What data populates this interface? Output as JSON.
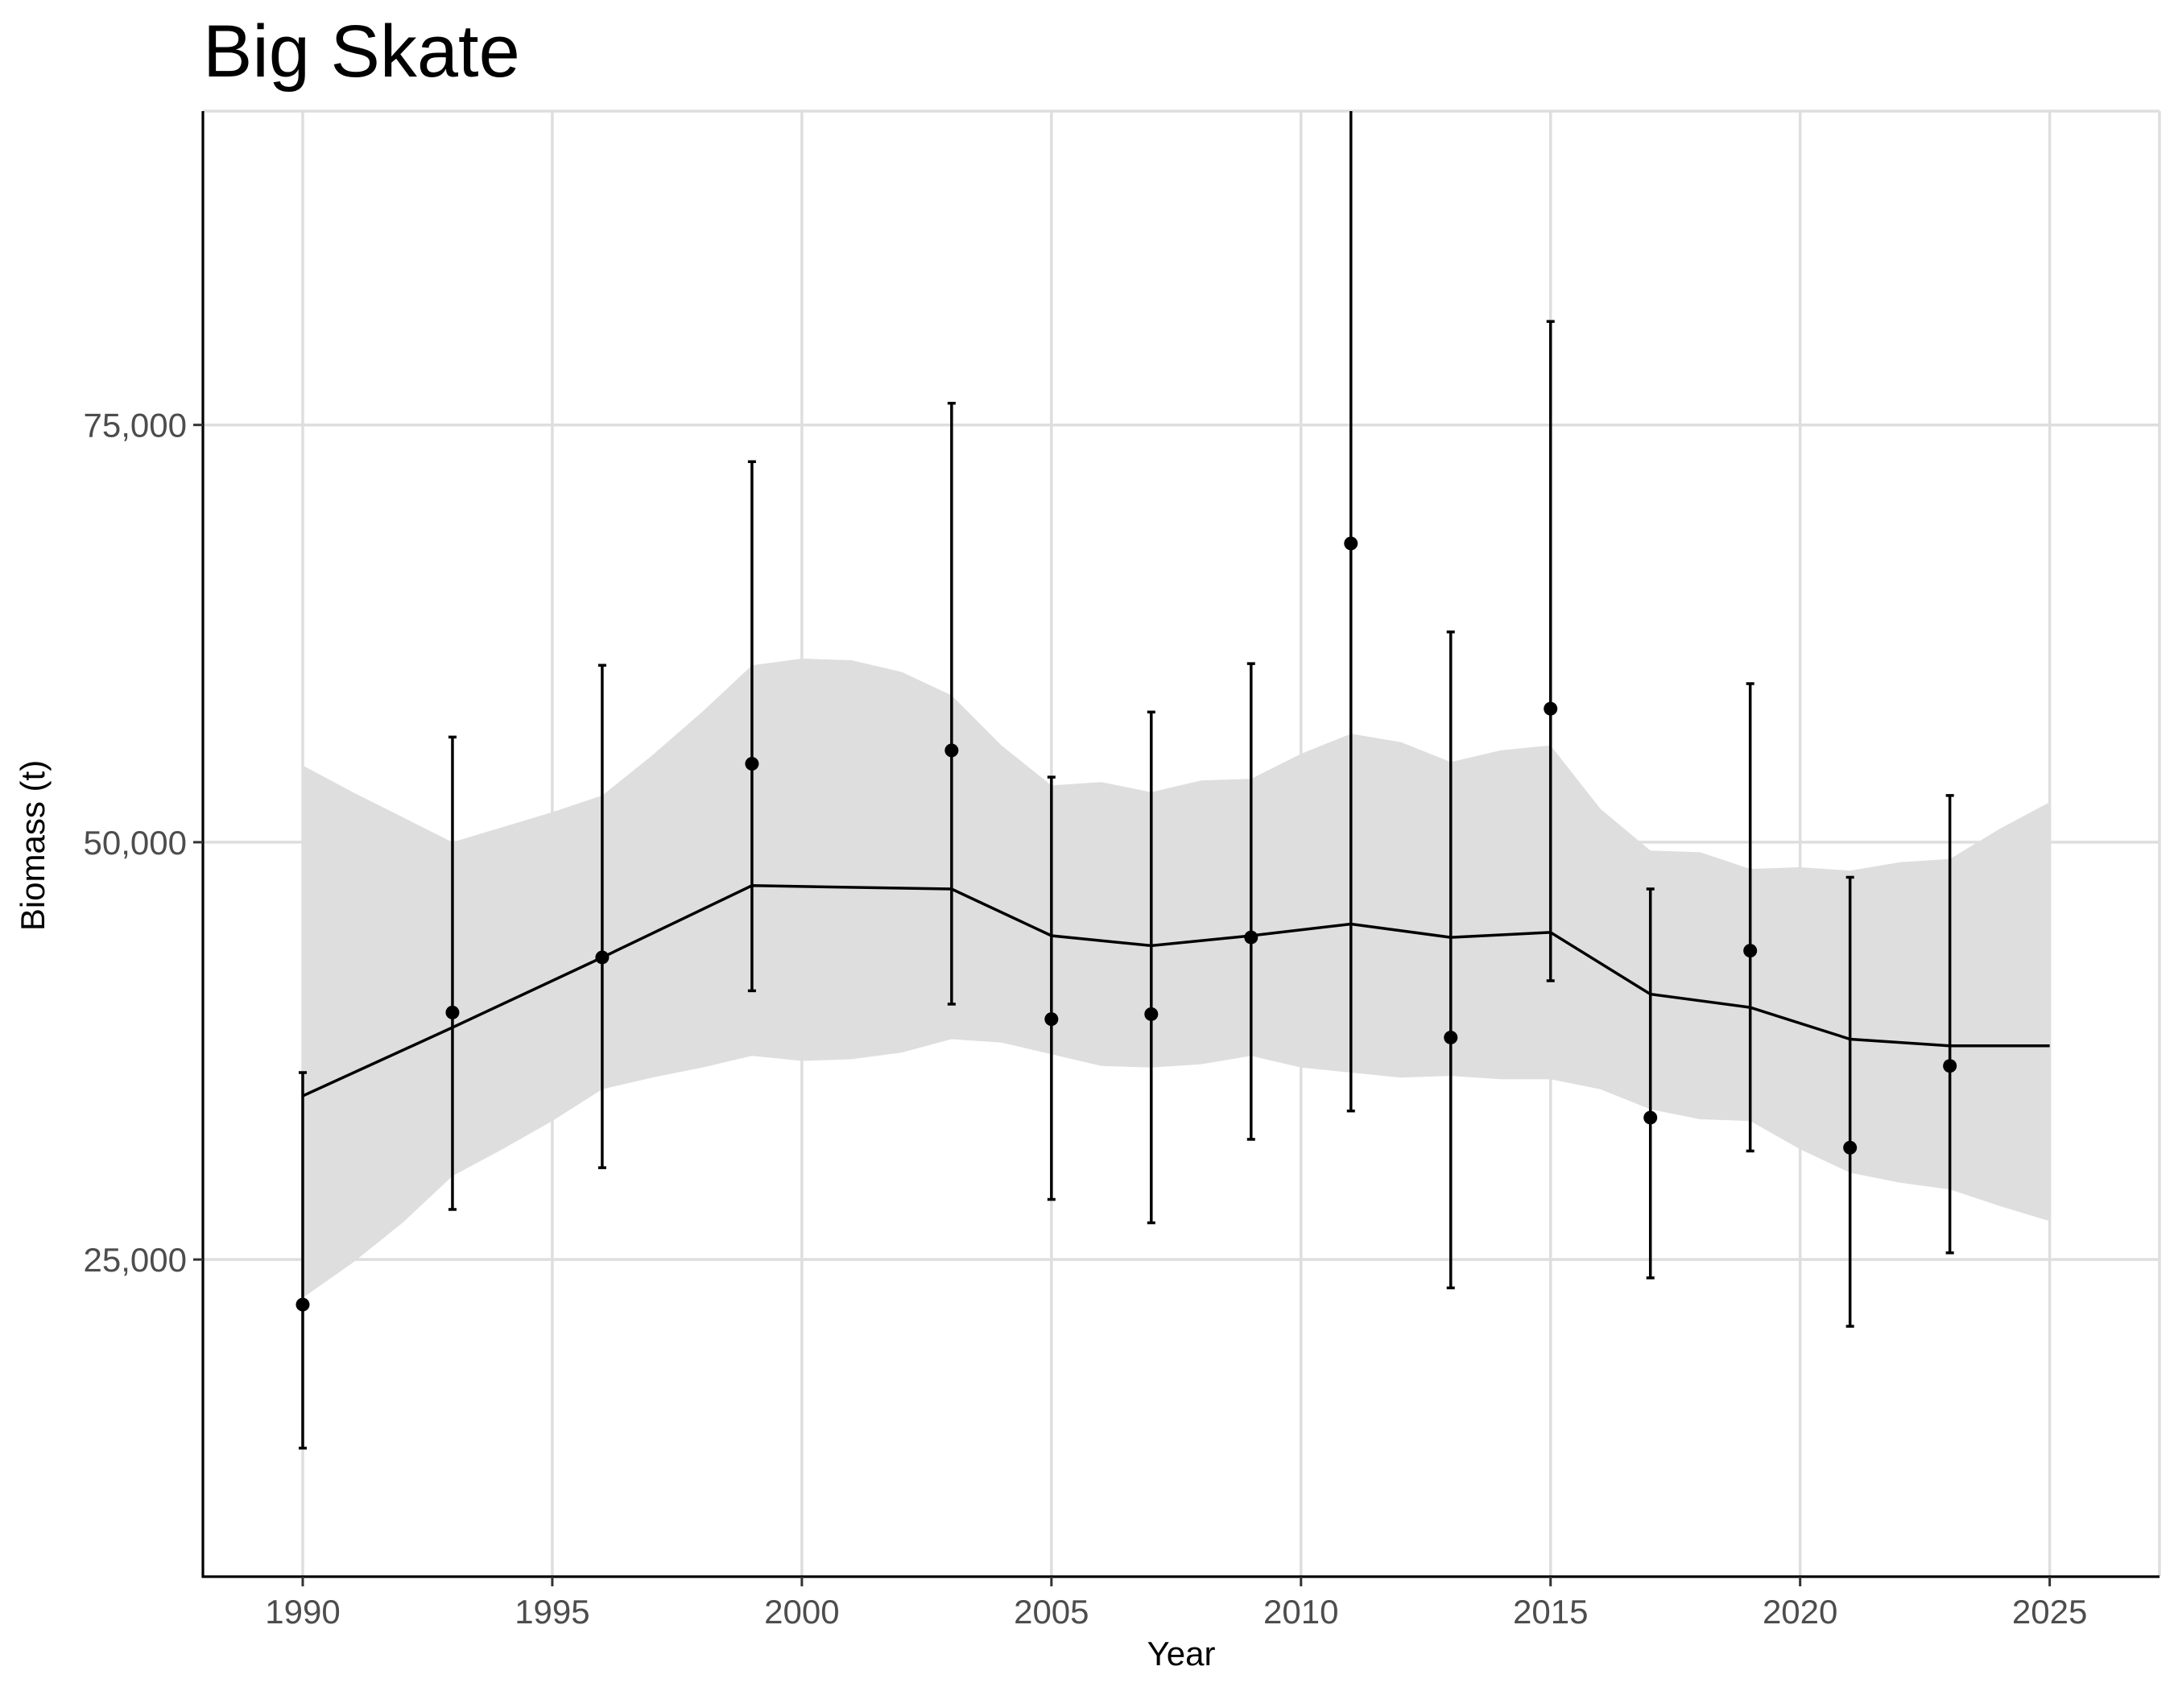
{
  "chart_data": {
    "type": "line",
    "title": "Big Skate",
    "xlabel": "Year",
    "ylabel": "Biomass (t)",
    "xlim": [
      1988,
      2027.2
    ],
    "ylim": [
      6000,
      93800
    ],
    "x_ticks": [
      1990,
      1995,
      2000,
      2005,
      2010,
      2015,
      2020,
      2025
    ],
    "x_tick_labels": [
      "1990",
      "1995",
      "2000",
      "2005",
      "2010",
      "2015",
      "2020",
      "2025"
    ],
    "y_ticks": [
      25000,
      50000,
      75000
    ],
    "y_tick_labels": [
      "25,000",
      "50,000",
      "75,000"
    ],
    "grid": true,
    "legend": "none",
    "colors": {
      "band": "#dedede",
      "line": "#000000",
      "points": "#000000",
      "grid": "#dedede",
      "tick_labels": "#4d4d4d"
    },
    "observations": {
      "x": [
        1990,
        1993,
        1996,
        1999,
        2003,
        2005,
        2007,
        2009,
        2011,
        2013,
        2015,
        2017,
        2019,
        2021,
        2023
      ],
      "y": [
        22300,
        39800,
        43100,
        54700,
        55500,
        39400,
        39700,
        44300,
        67900,
        38300,
        58000,
        33500,
        43500,
        31700,
        36600
      ],
      "lower": [
        13700,
        28000,
        30500,
        41100,
        40300,
        28600,
        27200,
        32200,
        33900,
        23300,
        41700,
        23900,
        31500,
        21000,
        25400
      ],
      "upper": [
        36200,
        56300,
        60600,
        72800,
        76300,
        53900,
        57800,
        60700,
        95000,
        62600,
        81200,
        47200,
        59500,
        47900,
        52800
      ]
    },
    "fitted": {
      "x": [
        1990,
        1993,
        1996,
        1999,
        2003,
        2005,
        2007,
        2009,
        2011,
        2013,
        2015,
        2017,
        2019,
        2021,
        2023,
        2025
      ],
      "y": [
        34800,
        38900,
        43100,
        47400,
        47200,
        44400,
        43800,
        44400,
        45100,
        44300,
        44600,
        40900,
        40100,
        38200,
        37800,
        37800
      ]
    },
    "interval": {
      "x": [
        1990,
        1991,
        1992,
        1993,
        1994,
        1995,
        1996,
        1997,
        1998,
        1999,
        2000,
        2001,
        2002,
        2003,
        2004,
        2005,
        2006,
        2007,
        2008,
        2009,
        2010,
        2011,
        2012,
        2013,
        2014,
        2015,
        2016,
        2017,
        2018,
        2019,
        2020,
        2021,
        2022,
        2023,
        2024,
        2025
      ],
      "lower": [
        22700,
        24800,
        27200,
        30000,
        31600,
        33300,
        35200,
        35900,
        36500,
        37200,
        36900,
        37000,
        37400,
        38200,
        38000,
        37300,
        36600,
        36500,
        36700,
        37200,
        36500,
        36200,
        35900,
        36000,
        35800,
        35800,
        35200,
        34000,
        33400,
        33300,
        31600,
        30200,
        29600,
        29200,
        28200,
        27300
      ],
      "upper": [
        54600,
        53000,
        51500,
        50000,
        50900,
        51800,
        52800,
        55200,
        57800,
        60600,
        61000,
        60900,
        60200,
        58800,
        55800,
        53400,
        53600,
        53000,
        53700,
        53800,
        55300,
        56500,
        56000,
        54800,
        55500,
        55800,
        52000,
        49500,
        49400,
        48400,
        48500,
        48300,
        48800,
        49000,
        50800,
        52400
      ]
    }
  }
}
